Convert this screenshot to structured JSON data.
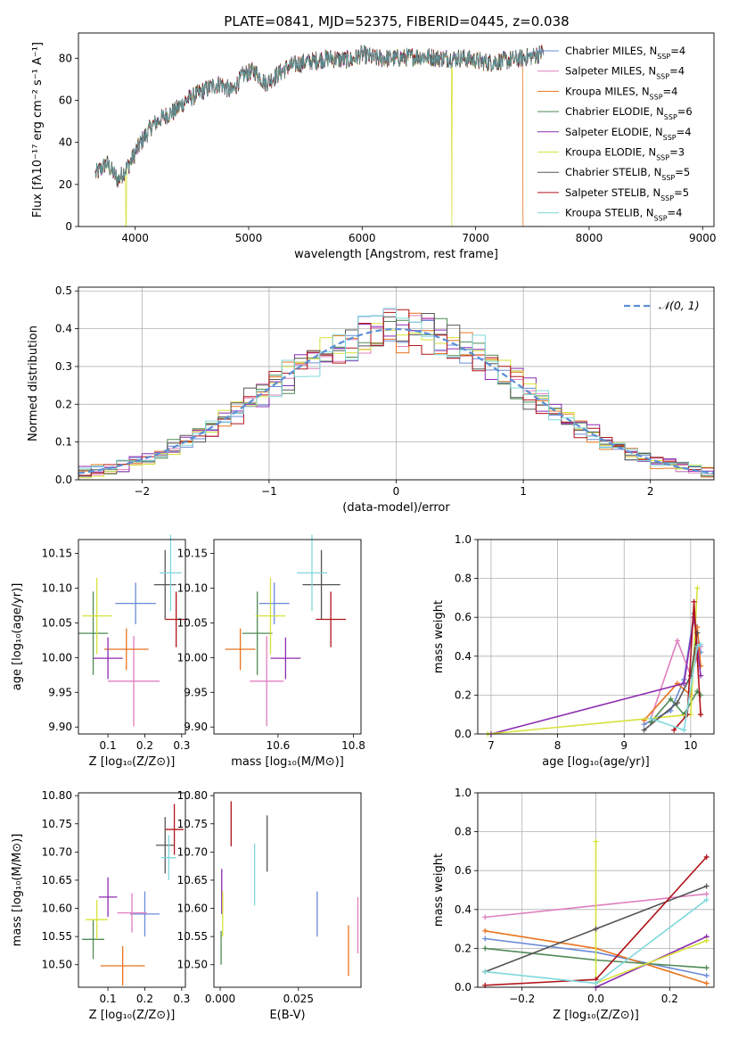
{
  "figure": {
    "title": "PLATE=0841, MJD=52375, FIBERID=0445, z=0.038"
  },
  "colors": {
    "Chabrier MILES": "#6a8ad8",
    "Salpeter MILES": "#e07fbf",
    "Kroupa MILES": "#e8741f",
    "Chabrier ELODIE": "#4e8a55",
    "Salpeter ELODIE": "#8c2bb0",
    "Kroupa ELODIE": "#d6e23a",
    "Chabrier STELIB": "#555555",
    "Salpeter STELIB": "#b0141a",
    "Kroupa STELIB": "#7fd8dc",
    "normal": "#5b8fd6"
  },
  "chart_data": [
    {
      "id": "spectrum",
      "type": "line",
      "xlabel": "wavelength [Angstrom, rest frame]",
      "ylabel": "Flux [fλ10⁻¹⁷ erg cm⁻² s⁻¹ A⁻¹]",
      "xlim": [
        3500,
        9100
      ],
      "ylim": [
        0,
        92
      ],
      "xticks": [
        4000,
        5000,
        6000,
        7000,
        8000,
        9000
      ],
      "yticks": [
        0,
        20,
        40,
        60,
        80
      ],
      "legend_position": "top-right",
      "legend": [
        {
          "model": "Chabrier MILES",
          "label": "Chabrier MILES, N",
          "sub": "SSP",
          "tail": "=4"
        },
        {
          "model": "Salpeter MILES",
          "label": "Salpeter MILES, N",
          "sub": "SSP",
          "tail": "=4"
        },
        {
          "model": "Kroupa MILES",
          "label": "Kroupa MILES, N",
          "sub": "SSP",
          "tail": "=4"
        },
        {
          "model": "Chabrier ELODIE",
          "label": "Chabrier ELODIE, N",
          "sub": "SSP",
          "tail": "=6"
        },
        {
          "model": "Salpeter ELODIE",
          "label": "Salpeter ELODIE, N",
          "sub": "SSP",
          "tail": "=4"
        },
        {
          "model": "Kroupa ELODIE",
          "label": "Kroupa ELODIE, N",
          "sub": "SSP",
          "tail": "=3"
        },
        {
          "model": "Chabrier STELIB",
          "label": "Chabrier STELIB, N",
          "sub": "SSP",
          "tail": "=5"
        },
        {
          "model": "Salpeter STELIB",
          "label": "Salpeter STELIB, N",
          "sub": "SSP",
          "tail": "=5"
        },
        {
          "model": "Kroupa STELIB",
          "label": "Kroupa STELIB, N",
          "sub": "SSP",
          "tail": "=4"
        }
      ],
      "wavelength_range": [
        3650,
        7600
      ],
      "continuum_points": [
        [
          3650,
          25
        ],
        [
          3750,
          30
        ],
        [
          3850,
          22
        ],
        [
          3950,
          30
        ],
        [
          4050,
          40
        ],
        [
          4150,
          48
        ],
        [
          4250,
          52
        ],
        [
          4350,
          55
        ],
        [
          4450,
          60
        ],
        [
          4550,
          63
        ],
        [
          4650,
          66
        ],
        [
          4750,
          68
        ],
        [
          4850,
          64
        ],
        [
          4950,
          72
        ],
        [
          5050,
          74
        ],
        [
          5150,
          68
        ],
        [
          5250,
          72
        ],
        [
          5350,
          76
        ],
        [
          5500,
          78
        ],
        [
          5700,
          80
        ],
        [
          5900,
          79
        ],
        [
          6000,
          82
        ],
        [
          6100,
          80
        ],
        [
          6300,
          80
        ],
        [
          6500,
          81
        ],
        [
          6700,
          80
        ],
        [
          6900,
          80
        ],
        [
          7100,
          78
        ],
        [
          7300,
          79
        ],
        [
          7500,
          81
        ],
        [
          7600,
          83
        ],
        [
          7700,
          84
        ],
        [
          7800,
          85
        ]
      ],
      "drops": [
        {
          "model": "Kroupa ELODIE",
          "x": 3920
        },
        {
          "model": "Kroupa ELODIE",
          "x": 6790
        },
        {
          "model": "Kroupa MILES",
          "x": 7420
        }
      ]
    },
    {
      "id": "residual-histogram",
      "type": "bar",
      "xlabel": "(data-model)/error",
      "ylabel": "Normed distribution",
      "xlim": [
        -2.5,
        2.5
      ],
      "ylim": [
        0,
        0.51
      ],
      "xticks": [
        -2,
        -1,
        0,
        1,
        2
      ],
      "yticks": [
        0.0,
        0.1,
        0.2,
        0.3,
        0.4,
        0.5
      ],
      "bin_width": 0.1,
      "grid": true,
      "legend_position": "top-right",
      "legend": [
        {
          "label": "𝒩(0, 1)",
          "style": "dashed"
        }
      ]
    },
    {
      "id": "age-vs-Z",
      "type": "scatter",
      "xlabel": "Z [log₁₀(Z/Z⊙)]",
      "ylabel": "age  [log₁₀(age/yr)]",
      "xlim": [
        0.02,
        0.31
      ],
      "ylim": [
        9.89,
        10.17
      ],
      "xticks": [
        0.1,
        0.2,
        0.3
      ],
      "yticks": [
        9.9,
        9.95,
        10.0,
        10.05,
        10.1,
        10.15
      ],
      "points": [
        {
          "model": "Chabrier MILES",
          "x": 0.175,
          "y": 10.078,
          "xerr": 0.055,
          "yerr": 0.03
        },
        {
          "model": "Salpeter MILES",
          "x": 0.17,
          "y": 9.966,
          "xerr": 0.07,
          "yerr": 0.065
        },
        {
          "model": "Kroupa MILES",
          "x": 0.15,
          "y": 10.012,
          "xerr": 0.06,
          "yerr": 0.03
        },
        {
          "model": "Chabrier ELODIE",
          "x": 0.06,
          "y": 10.035,
          "xerr": 0.04,
          "yerr": 0.06
        },
        {
          "model": "Salpeter ELODIE",
          "x": 0.1,
          "y": 9.999,
          "xerr": 0.04,
          "yerr": 0.03
        },
        {
          "model": "Kroupa ELODIE",
          "x": 0.07,
          "y": 10.06,
          "xerr": 0.04,
          "yerr": 0.055
        },
        {
          "model": "Chabrier STELIB",
          "x": 0.255,
          "y": 10.105,
          "xerr": 0.03,
          "yerr": 0.05
        },
        {
          "model": "Salpeter STELIB",
          "x": 0.285,
          "y": 10.055,
          "xerr": 0.03,
          "yerr": 0.04
        },
        {
          "model": "Kroupa STELIB",
          "x": 0.27,
          "y": 10.122,
          "xerr": 0.03,
          "yerr": 0.055
        }
      ]
    },
    {
      "id": "age-vs-mass",
      "type": "scatter",
      "xlabel": "mass [log₁₀(M/M⊙)]",
      "ylabel": "",
      "xlim": [
        10.43,
        10.82
      ],
      "ylim": [
        9.89,
        10.17
      ],
      "xticks": [
        10.6,
        10.8
      ],
      "yticks": [
        9.9,
        9.95,
        10.0,
        10.05,
        10.1,
        10.15
      ],
      "points": [
        {
          "model": "Chabrier MILES",
          "x": 10.59,
          "y": 10.078,
          "xerr": 0.04,
          "yerr": 0.03
        },
        {
          "model": "Salpeter MILES",
          "x": 10.57,
          "y": 9.966,
          "xerr": 0.045,
          "yerr": 0.065
        },
        {
          "model": "Kroupa MILES",
          "x": 10.5,
          "y": 10.012,
          "xerr": 0.04,
          "yerr": 0.03
        },
        {
          "model": "Chabrier ELODIE",
          "x": 10.545,
          "y": 10.035,
          "xerr": 0.04,
          "yerr": 0.06
        },
        {
          "model": "Salpeter ELODIE",
          "x": 10.62,
          "y": 9.999,
          "xerr": 0.04,
          "yerr": 0.03
        },
        {
          "model": "Kroupa ELODIE",
          "x": 10.58,
          "y": 10.06,
          "xerr": 0.04,
          "yerr": 0.055
        },
        {
          "model": "Chabrier STELIB",
          "x": 10.715,
          "y": 10.105,
          "xerr": 0.05,
          "yerr": 0.05
        },
        {
          "model": "Salpeter STELIB",
          "x": 10.74,
          "y": 10.055,
          "xerr": 0.04,
          "yerr": 0.04
        },
        {
          "model": "Kroupa STELIB",
          "x": 10.69,
          "y": 10.122,
          "xerr": 0.04,
          "yerr": 0.055
        }
      ]
    },
    {
      "id": "massweight-vs-age",
      "type": "line",
      "xlabel": "age  [log₁₀(age/yr)]",
      "ylabel": "mass weight",
      "xlim": [
        6.8,
        10.35
      ],
      "ylim": [
        0,
        1.0
      ],
      "xticks": [
        7,
        8,
        9,
        10
      ],
      "yticks": [
        0.0,
        0.2,
        0.4,
        0.6,
        0.8,
        1.0
      ],
      "grid": true,
      "series": [
        {
          "model": "Chabrier MILES",
          "points": [
            [
              9.3,
              0.05
            ],
            [
              9.7,
              0.12
            ],
            [
              9.9,
              0.28
            ],
            [
              10.05,
              0.62
            ],
            [
              10.15,
              0.42
            ]
          ]
        },
        {
          "model": "Salpeter MILES",
          "points": [
            [
              9.4,
              0.08
            ],
            [
              9.8,
              0.48
            ],
            [
              10.0,
              0.3
            ],
            [
              10.15,
              0.45
            ]
          ]
        },
        {
          "model": "Kroupa MILES",
          "points": [
            [
              9.3,
              0.07
            ],
            [
              9.8,
              0.26
            ],
            [
              10.0,
              0.2
            ],
            [
              10.1,
              0.55
            ],
            [
              10.15,
              0.35
            ]
          ]
        },
        {
          "model": "Chabrier ELODIE",
          "points": [
            [
              9.4,
              0.06
            ],
            [
              9.7,
              0.18
            ],
            [
              9.9,
              0.1
            ],
            [
              10.1,
              0.22
            ],
            [
              10.15,
              0.2
            ]
          ]
        },
        {
          "model": "Salpeter ELODIE",
          "points": [
            [
              7.0,
              0.0
            ],
            [
              9.9,
              0.26
            ],
            [
              10.05,
              0.6
            ],
            [
              10.15,
              0.3
            ]
          ]
        },
        {
          "model": "Kroupa ELODIE",
          "points": [
            [
              6.95,
              0.0
            ],
            [
              10.0,
              0.1
            ],
            [
              10.1,
              0.75
            ]
          ]
        },
        {
          "model": "Chabrier STELIB",
          "points": [
            [
              9.3,
              0.02
            ],
            [
              9.8,
              0.16
            ],
            [
              10.0,
              0.3
            ],
            [
              10.1,
              0.52
            ]
          ]
        },
        {
          "model": "Salpeter STELIB",
          "points": [
            [
              9.75,
              0.02
            ],
            [
              9.95,
              0.1
            ],
            [
              10.05,
              0.68
            ],
            [
              10.15,
              0.1
            ]
          ]
        },
        {
          "model": "Kroupa STELIB",
          "points": [
            [
              9.4,
              0.08
            ],
            [
              9.9,
              0.02
            ],
            [
              10.1,
              0.45
            ],
            [
              10.15,
              0.46
            ]
          ]
        }
      ]
    },
    {
      "id": "mass-vs-Z",
      "type": "scatter",
      "xlabel": "Z [log₁₀(Z/Z⊙)]",
      "ylabel": "mass [log₁₀(M/M⊙)]",
      "xlim": [
        0.02,
        0.31
      ],
      "ylim": [
        10.46,
        10.805
      ],
      "xticks": [
        0.1,
        0.2,
        0.3
      ],
      "yticks": [
        10.5,
        10.55,
        10.6,
        10.65,
        10.7,
        10.75,
        10.8
      ],
      "points": [
        {
          "model": "Chabrier MILES",
          "x": 0.2,
          "y": 10.59,
          "xerr": 0.04,
          "yerr": 0.04
        },
        {
          "model": "Salpeter MILES",
          "x": 0.165,
          "y": 10.592,
          "xerr": 0.04,
          "yerr": 0.035
        },
        {
          "model": "Kroupa MILES",
          "x": 0.14,
          "y": 10.498,
          "xerr": 0.06,
          "yerr": 0.035
        },
        {
          "model": "Chabrier ELODIE",
          "x": 0.06,
          "y": 10.545,
          "xerr": 0.03,
          "yerr": 0.035
        },
        {
          "model": "Salpeter ELODIE",
          "x": 0.1,
          "y": 10.62,
          "xerr": 0.025,
          "yerr": 0.035
        },
        {
          "model": "Kroupa ELODIE",
          "x": 0.07,
          "y": 10.58,
          "xerr": 0.03,
          "yerr": 0.035
        },
        {
          "model": "Chabrier STELIB",
          "x": 0.255,
          "y": 10.712,
          "xerr": 0.025,
          "yerr": 0.05
        },
        {
          "model": "Salpeter STELIB",
          "x": 0.28,
          "y": 10.74,
          "xerr": 0.025,
          "yerr": 0.045
        },
        {
          "model": "Kroupa STELIB",
          "x": 0.265,
          "y": 10.69,
          "xerr": 0.02,
          "yerr": 0.04
        }
      ]
    },
    {
      "id": "mass-vs-EBV",
      "type": "scatter",
      "xlabel": "E(B-V)",
      "ylabel": "",
      "xlim": [
        -0.002,
        0.045
      ],
      "ylim": [
        10.46,
        10.805
      ],
      "xticks": [
        0.0,
        0.025
      ],
      "yticks": [
        10.5,
        10.55,
        10.6,
        10.65,
        10.7,
        10.75,
        10.8
      ],
      "points": [
        {
          "model": "Chabrier MILES",
          "x": 0.031,
          "y": 10.59,
          "xerr": 0,
          "yerr": 0.04
        },
        {
          "model": "Salpeter MILES",
          "x": 0.044,
          "y": 10.57,
          "xerr": 0,
          "yerr": 0.05
        },
        {
          "model": "Kroupa MILES",
          "x": 0.041,
          "y": 10.525,
          "xerr": 0,
          "yerr": 0.045
        },
        {
          "model": "Chabrier ELODIE",
          "x": 0.0003,
          "y": 10.53,
          "xerr": 0,
          "yerr": 0.03
        },
        {
          "model": "Salpeter ELODIE",
          "x": 0.0005,
          "y": 10.63,
          "xerr": 0,
          "yerr": 0.04
        },
        {
          "model": "Kroupa ELODIE",
          "x": 0.0008,
          "y": 10.59,
          "xerr": 0,
          "yerr": 0.04
        },
        {
          "model": "Chabrier STELIB",
          "x": 0.015,
          "y": 10.715,
          "xerr": 0,
          "yerr": 0.05
        },
        {
          "model": "Salpeter STELIB",
          "x": 0.0035,
          "y": 10.75,
          "xerr": 0,
          "yerr": 0.04
        },
        {
          "model": "Kroupa STELIB",
          "x": 0.011,
          "y": 10.66,
          "xerr": 0,
          "yerr": 0.055
        }
      ]
    },
    {
      "id": "massweight-vs-Z",
      "type": "line",
      "xlabel": "Z [log₁₀(Z/Z⊙)]",
      "ylabel": "mass weight",
      "xlim": [
        -0.32,
        0.32
      ],
      "ylim": [
        0,
        1.0
      ],
      "xticks": [
        -0.2,
        0.0,
        0.2
      ],
      "yticks": [
        0.0,
        0.2,
        0.4,
        0.6,
        0.8,
        1.0
      ],
      "grid": true,
      "series": [
        {
          "model": "Chabrier MILES",
          "points": [
            [
              -0.3,
              0.25
            ],
            [
              0.0,
              0.18
            ],
            [
              0.3,
              0.06
            ]
          ]
        },
        {
          "model": "Salpeter MILES",
          "points": [
            [
              -0.3,
              0.36
            ],
            [
              0.0,
              0.42
            ],
            [
              0.3,
              0.48
            ]
          ]
        },
        {
          "model": "Kroupa MILES",
          "points": [
            [
              -0.3,
              0.29
            ],
            [
              0.0,
              0.2
            ],
            [
              0.3,
              0.02
            ]
          ]
        },
        {
          "model": "Chabrier ELODIE",
          "points": [
            [
              -0.3,
              0.2
            ],
            [
              0.0,
              0.14
            ],
            [
              0.3,
              0.1
            ]
          ]
        },
        {
          "model": "Salpeter ELODIE",
          "points": [
            [
              0.0,
              0.0
            ],
            [
              0.3,
              0.26
            ]
          ]
        },
        {
          "model": "Kroupa ELODIE",
          "points": [
            [
              0.0,
              0.75
            ],
            [
              0.0,
              0.02
            ],
            [
              0.3,
              0.24
            ]
          ]
        },
        {
          "model": "Chabrier STELIB",
          "points": [
            [
              -0.3,
              0.08
            ],
            [
              0.0,
              0.3
            ],
            [
              0.3,
              0.52
            ]
          ]
        },
        {
          "model": "Salpeter STELIB",
          "points": [
            [
              -0.3,
              0.01
            ],
            [
              0.0,
              0.04
            ],
            [
              0.3,
              0.67
            ]
          ]
        },
        {
          "model": "Kroupa STELIB",
          "points": [
            [
              -0.3,
              0.08
            ],
            [
              0.0,
              0.02
            ],
            [
              0.3,
              0.45
            ]
          ]
        }
      ]
    }
  ]
}
